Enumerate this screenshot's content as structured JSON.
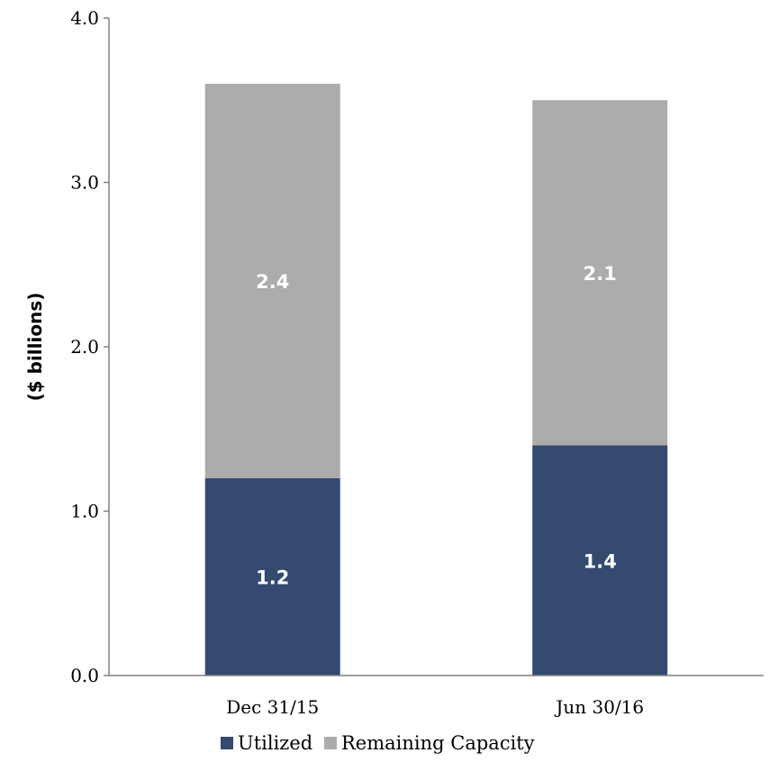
{
  "chart_data": {
    "type": "bar",
    "stacked": true,
    "categories": [
      "Dec 31/15",
      "Jun 30/16"
    ],
    "series": [
      {
        "name": "Utilized",
        "values": [
          1.2,
          1.4
        ],
        "color": "#344A6E"
      },
      {
        "name": "Remaining Capacity",
        "values": [
          2.4,
          2.1
        ],
        "color": "#AEABAB"
      }
    ],
    "data_labels": [
      [
        "1.2",
        "1.4"
      ],
      [
        "2.4",
        "2.1"
      ]
    ],
    "title": "",
    "xlabel": "",
    "ylabel": "($ billions)",
    "ylim": [
      0,
      4.0
    ],
    "yticks": [
      "0.0",
      "1.0",
      "2.0",
      "3.0",
      "4.0"
    ],
    "grid": false,
    "legend_position": "bottom"
  }
}
